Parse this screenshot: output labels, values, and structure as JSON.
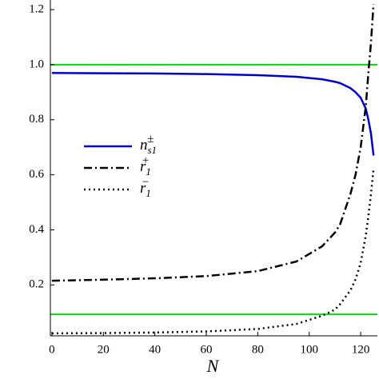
{
  "chart_data": {
    "type": "line",
    "x_label": "N",
    "x": [
      0,
      20,
      40,
      60,
      80,
      95,
      105,
      110,
      112,
      116,
      118,
      120,
      122,
      123,
      124,
      125
    ],
    "series": [
      {
        "name": "n",
        "name_sub": "s1",
        "name_sup": "±",
        "color": "#0000cc",
        "dash": "solid",
        "values": [
          0.97,
          0.969,
          0.968,
          0.966,
          0.962,
          0.956,
          0.947,
          0.938,
          0.933,
          0.915,
          0.9,
          0.88,
          0.84,
          0.8,
          0.75,
          0.67
        ]
      },
      {
        "name": "r",
        "name_sub": "1",
        "name_sup": "+",
        "color": "#000000",
        "dash": "dashdot",
        "values": [
          0.215,
          0.219,
          0.224,
          0.232,
          0.25,
          0.285,
          0.34,
          0.39,
          0.42,
          0.53,
          0.6,
          0.7,
          0.85,
          0.97,
          1.08,
          1.22
        ]
      },
      {
        "name": "r",
        "name_sub": "1",
        "name_sup": "−",
        "color": "#000000",
        "dash": "dotted",
        "values": [
          0.024,
          0.025,
          0.027,
          0.031,
          0.04,
          0.058,
          0.088,
          0.11,
          0.13,
          0.18,
          0.22,
          0.28,
          0.38,
          0.45,
          0.53,
          0.62
        ]
      }
    ],
    "hlines": [
      1.0,
      0.093
    ],
    "hline_color": "#00dd00",
    "xlim": [
      -0.6,
      126.5
    ],
    "ylim": [
      0.015,
      1.235
    ],
    "xticks": [
      0,
      20,
      40,
      60,
      80,
      100,
      120
    ],
    "yticks": [
      0.2,
      0.4,
      0.6,
      0.8,
      {
        "value": 1.0,
        "label": "1.0"
      },
      1.2
    ],
    "legend": "left"
  }
}
